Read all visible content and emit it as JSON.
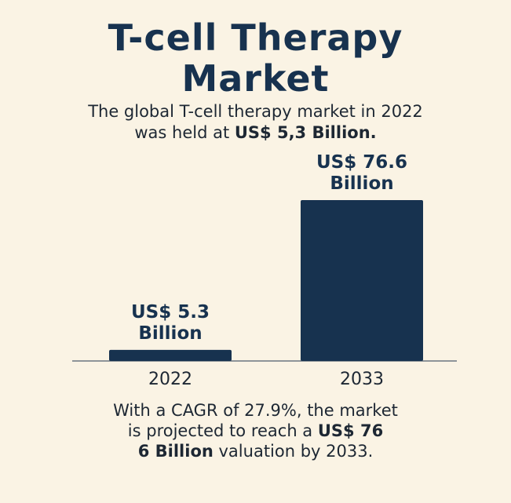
{
  "header": {
    "title_line1": "T-cell Therapy",
    "title_line2": "Market"
  },
  "subtitle": {
    "line1": "The global T-cell therapy market in 2022",
    "line2_prefix": "was held at ",
    "line2_bold": "US$ 5,3 Billion."
  },
  "footer": {
    "line1": "With a CAGR of 27.9%, the market",
    "line2_prefix": "is projected to reach a ",
    "line2_bold": "US$ 76",
    "line3_bold": "6 Billion",
    "line3_suffix": " valuation by 2033."
  },
  "colors": {
    "background": "#faf3e4",
    "bar": "#17324f",
    "text": "#17324f"
  },
  "chart_data": {
    "type": "bar",
    "categories": [
      "2022",
      "2033"
    ],
    "values": [
      5.3,
      76.6
    ],
    "unit": "US$ Billion",
    "data_labels": [
      [
        "US$ 5.3",
        "Billion"
      ],
      [
        "US$ 76.6",
        "Billion"
      ]
    ],
    "title": "",
    "xlabel": "",
    "ylabel": "",
    "grid": false
  }
}
